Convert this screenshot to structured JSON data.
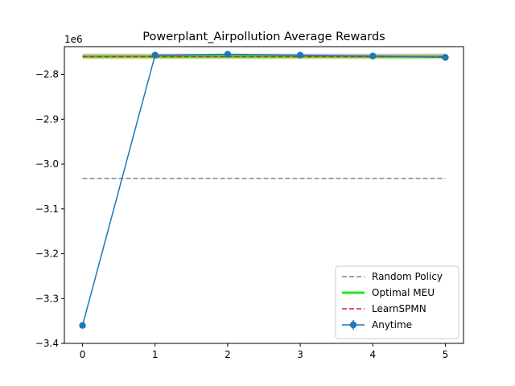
{
  "chart_data": {
    "type": "line",
    "title": "Powerplant_Airpollution Average Rewards",
    "xlabel": "",
    "ylabel": "",
    "y_multiplier_label": "1e6",
    "xlim": [
      -0.25,
      5.25
    ],
    "ylim": [
      -3.4,
      -2.738
    ],
    "x_ticks": [
      0,
      1,
      2,
      3,
      4,
      5
    ],
    "y_ticks": [
      -3.4,
      -3.3,
      -3.2,
      -3.1,
      -3.0,
      -2.9,
      -2.8
    ],
    "y_tick_labels": [
      "−3.4",
      "−3.3",
      "−3.2",
      "−3.1",
      "−3.0",
      "−2.9",
      "−2.8"
    ],
    "legend_position": "lower-right",
    "grid": false,
    "series": [
      {
        "name": "Random Policy",
        "kind": "hline",
        "x_range": [
          0,
          5
        ],
        "y": -3.032,
        "color": "#808080",
        "style": "dashed"
      },
      {
        "name": "Optimal MEU",
        "kind": "hline",
        "x_range": [
          0,
          5
        ],
        "y": -2.76,
        "color": "#22e822",
        "style": "solid"
      },
      {
        "name": "LearnSPMN",
        "kind": "hline",
        "x_range": [
          0,
          5
        ],
        "y": -2.7605,
        "color": "#d62728",
        "style": "dashed"
      },
      {
        "name": "Anytime",
        "kind": "errorbar",
        "x": [
          0,
          1,
          2,
          3,
          4,
          5
        ],
        "y": [
          -3.36,
          -2.757,
          -2.755,
          -2.757,
          -2.759,
          -2.762
        ],
        "yerr": [
          0.002,
          0.003,
          0.007,
          0.004,
          0.005,
          0.003
        ],
        "color": "#1f77b4",
        "style": "solid",
        "marker": "circle"
      }
    ],
    "background_bands": [
      {
        "y": -2.7595,
        "color": "#f0a040"
      },
      {
        "y": -2.758,
        "color": "#e377c2"
      },
      {
        "y": -2.7615,
        "color": "#9acd32"
      }
    ]
  }
}
